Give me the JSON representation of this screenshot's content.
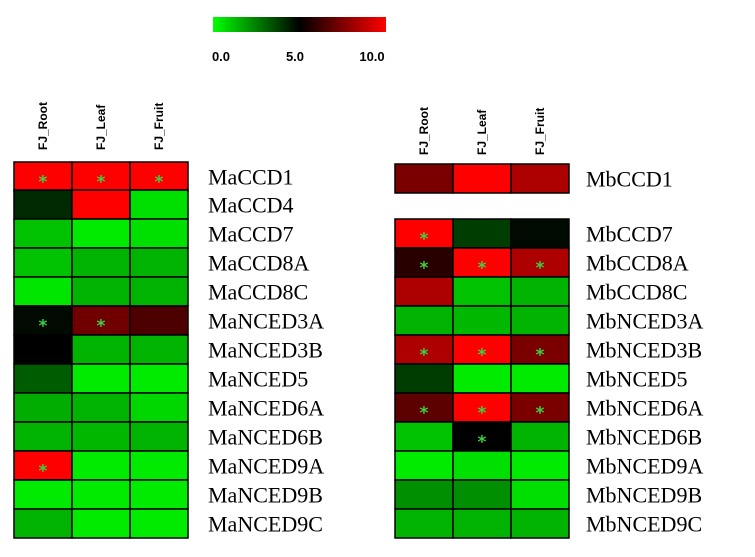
{
  "chart_data": [
    {
      "type": "heatmap",
      "name": "Ma",
      "columns": [
        "FJ_Root",
        "FJ_Leaf",
        "FJ_Fruit"
      ],
      "rows": [
        "MaCCD1",
        "MaCCD4",
        "MaCCD7",
        "MaCCD8A",
        "MaCCD8C",
        "MaNCED3A",
        "MaNCED3B",
        "MaNCED5",
        "MaNCED6A",
        "MaNCED6B",
        "MaNCED9A",
        "MaNCED9B",
        "MaNCED9C"
      ],
      "values": [
        [
          10.0,
          10.0,
          10.0
        ],
        [
          4.2,
          10.0,
          0.6
        ],
        [
          1.2,
          0.4,
          0.6
        ],
        [
          1.2,
          1.5,
          1.5
        ],
        [
          0.5,
          1.5,
          1.5
        ],
        [
          4.8,
          7.2,
          6.5
        ],
        [
          5.0,
          1.5,
          1.5
        ],
        [
          3.2,
          0.4,
          0.4
        ],
        [
          1.6,
          1.5,
          0.8
        ],
        [
          1.5,
          1.4,
          1.5
        ],
        [
          10.0,
          0.4,
          0.4
        ],
        [
          0.4,
          0.4,
          0.4
        ],
        [
          1.5,
          0.4,
          0.4
        ]
      ],
      "significant": [
        [
          true,
          true,
          true
        ],
        [
          false,
          false,
          false
        ],
        [
          false,
          false,
          false
        ],
        [
          false,
          false,
          false
        ],
        [
          false,
          false,
          false
        ],
        [
          true,
          true,
          false
        ],
        [
          false,
          false,
          false
        ],
        [
          false,
          false,
          false
        ],
        [
          false,
          false,
          false
        ],
        [
          false,
          false,
          false
        ],
        [
          true,
          false,
          false
        ],
        [
          false,
          false,
          false
        ],
        [
          false,
          false,
          false
        ]
      ]
    },
    {
      "type": "heatmap",
      "name": "Mb",
      "columns": [
        "FJ_Root",
        "FJ_Leaf",
        "FJ_Fruit"
      ],
      "rows": [
        "MbCCD1",
        "MbCCD7",
        "MbCCD8A",
        "MbCCD8C",
        "MbNCED3A",
        "MbNCED3B",
        "MbNCED5",
        "MbNCED6A",
        "MbNCED6B",
        "MbNCED9A",
        "MbNCED9B",
        "MbNCED9C"
      ],
      "values": [
        [
          7.4,
          10.0,
          8.4
        ],
        [
          10.0,
          3.8,
          4.8
        ],
        [
          5.8,
          10.0,
          8.4
        ],
        [
          8.4,
          1.2,
          1.5
        ],
        [
          1.5,
          1.4,
          1.5
        ],
        [
          8.4,
          10.0,
          7.4
        ],
        [
          3.8,
          0.4,
          0.4
        ],
        [
          6.8,
          10.0,
          7.4
        ],
        [
          1.2,
          5.0,
          1.5
        ],
        [
          0.4,
          0.6,
          0.4
        ],
        [
          2.2,
          2.2,
          0.6
        ],
        [
          1.5,
          1.5,
          1.5
        ]
      ],
      "significant": [
        [
          false,
          false,
          false
        ],
        [
          true,
          false,
          false
        ],
        [
          true,
          true,
          true
        ],
        [
          false,
          false,
          false
        ],
        [
          false,
          false,
          false
        ],
        [
          true,
          true,
          true
        ],
        [
          false,
          false,
          false
        ],
        [
          true,
          true,
          true
        ],
        [
          false,
          true,
          false
        ],
        [
          false,
          false,
          false
        ],
        [
          false,
          false,
          false
        ],
        [
          false,
          false,
          false
        ]
      ]
    }
  ],
  "legend": {
    "min": 0.0,
    "mid": 5.0,
    "max": 10.0,
    "ticks": [
      "0.0",
      "5.0",
      "10.0"
    ],
    "colors": {
      "low": "#00ff00",
      "mid": "#000000",
      "high": "#ff0000"
    }
  },
  "star_symbol": "*",
  "star_color": "#3fd03f"
}
